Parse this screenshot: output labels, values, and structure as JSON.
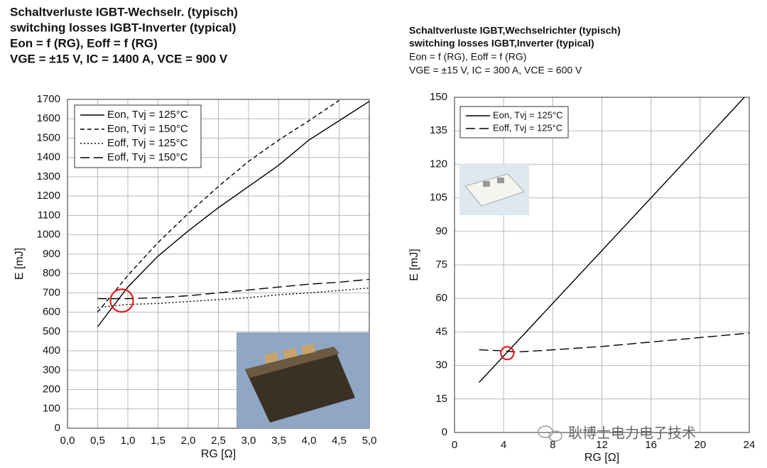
{
  "chart_data": [
    {
      "type": "line",
      "title_lines": [
        "Schaltverluste IGBT-Wechselr. (typisch)",
        "switching losses IGBT-Inverter (typical)",
        "Eon = f (RG), Eoff = f (RG)",
        "VGE = ±15 V, IC = 1400 A, VCE = 900 V"
      ],
      "x_label": "RG [Ω]",
      "y_label": "E [mJ]",
      "xlim": [
        0,
        5
      ],
      "ylim": [
        0,
        1700
      ],
      "xticks": [
        {
          "value": 0,
          "label": "0,0"
        },
        {
          "value": 0.5,
          "label": "0,5"
        },
        {
          "value": 1,
          "label": "1,0"
        },
        {
          "value": 1.5,
          "label": "1,5"
        },
        {
          "value": 2,
          "label": "2,0"
        },
        {
          "value": 2.5,
          "label": "2,5"
        },
        {
          "value": 3,
          "label": "3,0"
        },
        {
          "value": 3.5,
          "label": "3,5"
        },
        {
          "value": 4,
          "label": "4,0"
        },
        {
          "value": 4.5,
          "label": "4,5"
        },
        {
          "value": 5,
          "label": "5,0"
        }
      ],
      "yticks": [
        0,
        100,
        200,
        300,
        400,
        500,
        600,
        700,
        800,
        900,
        1000,
        1100,
        1200,
        1300,
        1400,
        1500,
        1600,
        1700
      ],
      "grid": true,
      "legend": "upper left",
      "series": [
        {
          "name": "Eon, Tvj = 125°C",
          "color": "#000000",
          "dash": "solid",
          "x": [
            0.5,
            1,
            1.5,
            2,
            2.5,
            3,
            3.5,
            4,
            4.5,
            5
          ],
          "values": [
            525,
            730,
            890,
            1020,
            1140,
            1250,
            1360,
            1490,
            1590,
            1690
          ]
        },
        {
          "name": "Eon, Tvj = 150°C",
          "color": "#000000",
          "dash": "dashed",
          "x": [
            0.5,
            1,
            1.5,
            2,
            2.5,
            3,
            3.5,
            4,
            4.5
          ],
          "values": [
            600,
            790,
            960,
            1110,
            1250,
            1380,
            1490,
            1590,
            1695
          ]
        },
        {
          "name": "Eoff, Tvj = 125°C",
          "color": "#000000",
          "dash": "dotted",
          "x": [
            0.5,
            1,
            1.5,
            2,
            2.5,
            3,
            3.5,
            4,
            4.5,
            5
          ],
          "values": [
            625,
            640,
            645,
            655,
            665,
            675,
            690,
            700,
            712,
            725
          ]
        },
        {
          "name": "Eoff, Tvj = 150°C",
          "color": "#000000",
          "dash": "long-dash",
          "x": [
            0.5,
            1,
            1.5,
            2,
            2.5,
            3,
            3.5,
            4,
            4.5,
            5
          ],
          "values": [
            670,
            670,
            675,
            685,
            700,
            715,
            730,
            745,
            755,
            770
          ]
        }
      ],
      "highlight": {
        "x": 0.9,
        "y": 660,
        "color": "#e02020"
      }
    },
    {
      "type": "line",
      "title_lines": [
        "Schaltverluste IGBT,Wechselrichter (typisch)",
        "switching losses IGBT,Inverter (typical)",
        "Eon = f (RG), Eoff = f (RG)",
        "VGE = ±15 V, IC = 300 A, VCE = 600 V"
      ],
      "x_label": "RG [Ω]",
      "y_label": "E [mJ]",
      "xlim": [
        0,
        24
      ],
      "ylim": [
        0,
        150
      ],
      "xticks": [
        0,
        4,
        8,
        12,
        16,
        20,
        24
      ],
      "yticks": [
        0,
        15,
        30,
        45,
        60,
        75,
        90,
        105,
        120,
        135,
        150
      ],
      "grid": true,
      "legend": "upper left",
      "series": [
        {
          "name": "Eon, Tvj = 125°C",
          "color": "#000000",
          "dash": "solid",
          "x": [
            2,
            4,
            8,
            12,
            16,
            20,
            23.6
          ],
          "values": [
            22.4,
            34.2,
            57.8,
            81.4,
            105,
            128.6,
            150
          ]
        },
        {
          "name": "Eoff, Tvj = 125°C",
          "color": "#000000",
          "dash": "long-dash",
          "x": [
            2,
            4,
            5,
            8,
            12,
            16,
            20,
            24
          ],
          "values": [
            37,
            36.5,
            36,
            37,
            38.5,
            40.5,
            42.5,
            44.5
          ]
        }
      ],
      "highlight": {
        "x": 4.3,
        "y": 35.5,
        "color": "#e02020"
      }
    }
  ],
  "watermark": "耿博士电力电子技术"
}
